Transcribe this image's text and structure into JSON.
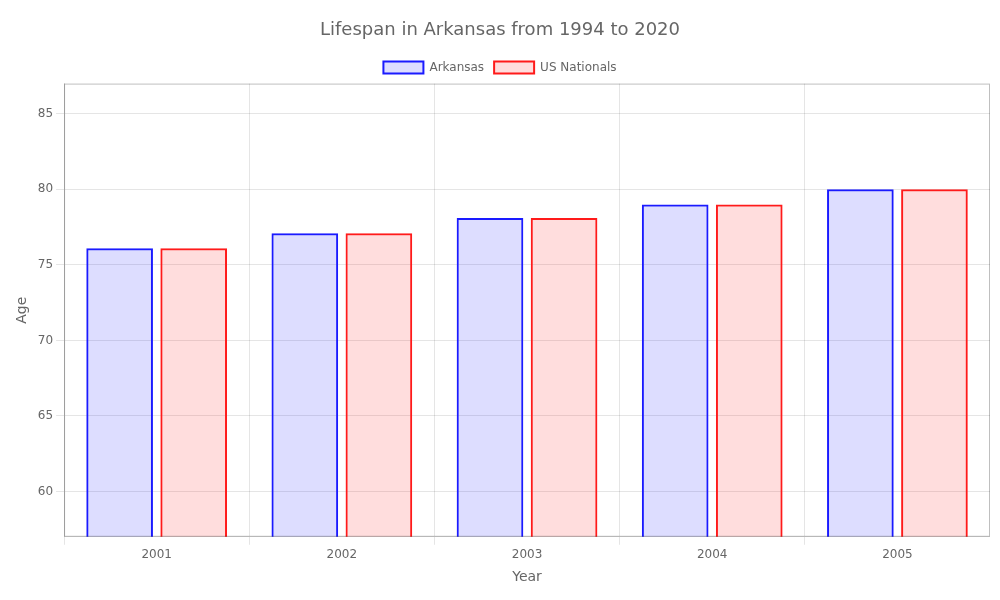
{
  "chart_data": {
    "type": "bar",
    "title": "Lifespan in Arkansas from 1994 to 2020",
    "xlabel": "Year",
    "ylabel": "Age",
    "categories": [
      "2001",
      "2002",
      "2003",
      "2004",
      "2005"
    ],
    "series": [
      {
        "name": "Arkansas",
        "color": "#1a1aff",
        "values": [
          76.1,
          77.1,
          78.1,
          79.0,
          80.0
        ]
      },
      {
        "name": "US Nationals",
        "color": "#ff1a1a",
        "values": [
          76.1,
          77.1,
          78.1,
          79.0,
          80.0
        ]
      }
    ],
    "ylim": [
      57,
      87
    ],
    "yticks": [
      60,
      65,
      70,
      75,
      80,
      85
    ],
    "grid": true,
    "legend": "top"
  }
}
